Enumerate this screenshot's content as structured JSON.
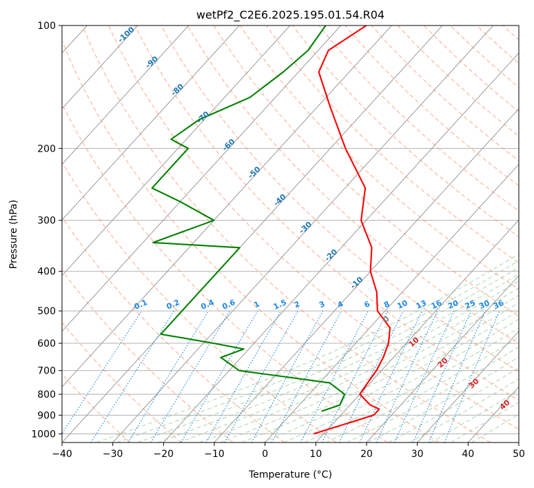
{
  "chart_data": {
    "type": "line",
    "title": "wetPf2_C2E6.2025.195.01.54.R04",
    "xlabel": "Temperature (°C)",
    "ylabel": "Pressure (hPa)",
    "xlim": [
      -40,
      50
    ],
    "ylim": [
      1050,
      100
    ],
    "y_scale": "log",
    "skew": "skew-T log-p",
    "grid": true,
    "x_ticks": [
      "−40",
      "−30",
      "−20",
      "−10",
      "0",
      "10",
      "20",
      "30",
      "40",
      "50"
    ],
    "x_tick_values": [
      -40,
      -30,
      -20,
      -10,
      0,
      10,
      20,
      30,
      40,
      50
    ],
    "y_ticks": [
      "100",
      "200",
      "300",
      "400",
      "500",
      "600",
      "700",
      "800",
      "900",
      "1000"
    ],
    "y_tick_values": [
      100,
      200,
      300,
      400,
      500,
      600,
      700,
      800,
      900,
      1000
    ],
    "series": [
      {
        "color": "#ff0000",
        "points": [
          [
            1000,
            8
          ],
          [
            900,
            16.5
          ],
          [
            870,
            16.5
          ],
          [
            850,
            14
          ],
          [
            800,
            10
          ],
          [
            750,
            9.5
          ],
          [
            700,
            9
          ],
          [
            650,
            8
          ],
          [
            600,
            6.5
          ],
          [
            550,
            4
          ],
          [
            500,
            -1.5
          ],
          [
            450,
            -5
          ],
          [
            400,
            -10
          ],
          [
            350,
            -14
          ],
          [
            300,
            -21
          ],
          [
            250,
            -26
          ],
          [
            200,
            -37
          ],
          [
            160,
            -47
          ],
          [
            130,
            -56
          ],
          [
            115,
            -58
          ],
          [
            100,
            -55
          ]
        ]
      },
      {
        "color": "#008000",
        "points": [
          [
            880,
            5.5
          ],
          [
            850,
            8
          ],
          [
            800,
            7
          ],
          [
            750,
            2
          ],
          [
            700,
            -18
          ],
          [
            650,
            -24
          ],
          [
            620,
            -21
          ],
          [
            600,
            -28
          ],
          [
            570,
            -40
          ],
          [
            375,
            -40
          ],
          [
            350,
            -40
          ],
          [
            340,
            -58
          ],
          [
            300,
            -50
          ],
          [
            270,
            -60
          ],
          [
            250,
            -68
          ],
          [
            230,
            -68
          ],
          [
            200,
            -68
          ],
          [
            190,
            -73
          ],
          [
            170,
            -71
          ],
          [
            150,
            -65
          ],
          [
            130,
            -63
          ],
          [
            115,
            -62
          ],
          [
            100,
            -63
          ]
        ]
      }
    ],
    "isotherm_labels": [
      "-100",
      "-90",
      "-80",
      "-70",
      "-60",
      "-50",
      "-40",
      "-30",
      "-20",
      "-10"
    ],
    "isotherm_label_values": [
      -100,
      -90,
      -80,
      -70,
      -60,
      -50,
      -40,
      -30,
      -20,
      -10
    ],
    "mixing_ratio_labels": [
      "0.1",
      "0.2",
      "0.4",
      "0.6",
      "1",
      "1.5",
      "2",
      "3",
      "4",
      "6",
      "8",
      "10",
      "13",
      "16",
      "20",
      "25",
      "30",
      "36"
    ],
    "mixing_ratio_values": [
      0.1,
      0.2,
      0.4,
      0.6,
      1,
      1.5,
      2,
      3,
      4,
      6,
      8,
      10,
      13,
      16,
      20,
      25,
      30,
      36
    ],
    "moist_adiabat_labels": [
      "0",
      "10",
      "20",
      "30",
      "40"
    ],
    "moist_adiabat_values": [
      0,
      10,
      20,
      30,
      40
    ],
    "colors": {
      "temperature": "#ff0000",
      "dewpoint": "#008000",
      "isotherm_label": "#1f77b4",
      "mixing_ratio": "#1e88e5",
      "dry_adiabat": "#ff8c66",
      "moist_adiabat": "#8fc98f",
      "moist_label_zero": "#808080",
      "moist_label": "#d62728",
      "grid": "#b0b0b0",
      "isotherm_line": "#999999"
    }
  }
}
